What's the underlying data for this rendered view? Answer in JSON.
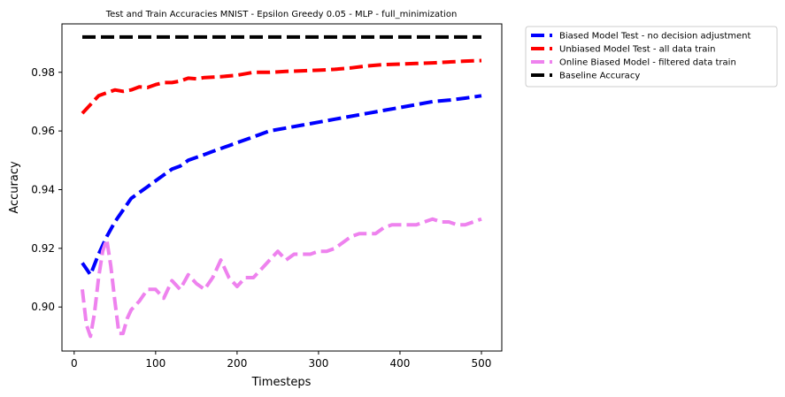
{
  "chart_data": {
    "type": "line",
    "title": "Test and Train Accuracies MNIST - Epsilon Greedy 0.05 - MLP - full_minimization",
    "xlabel": "Timesteps",
    "ylabel": "Accuracy",
    "xlim": [
      -15,
      525
    ],
    "ylim": [
      0.885,
      0.9965
    ],
    "xticks": [
      0,
      100,
      200,
      300,
      400,
      500
    ],
    "xtick_labels": [
      "0",
      "100",
      "200",
      "300",
      "400",
      "500"
    ],
    "yticks": [
      0.9,
      0.92,
      0.94,
      0.96,
      0.98
    ],
    "ytick_labels": [
      "0.90",
      "0.92",
      "0.94",
      "0.96",
      "0.98"
    ],
    "grid": false,
    "legend_position": "outside-right-top",
    "series": [
      {
        "name": "Biased Model Test - no decision adjustment",
        "color": "#0000ff",
        "dash": "dashed",
        "x": [
          10,
          20,
          30,
          40,
          50,
          60,
          70,
          80,
          90,
          100,
          110,
          120,
          130,
          140,
          150,
          160,
          170,
          180,
          190,
          200,
          220,
          240,
          260,
          280,
          300,
          320,
          340,
          360,
          380,
          400,
          420,
          440,
          460,
          480,
          500
        ],
        "y": [
          0.915,
          0.911,
          0.918,
          0.924,
          0.929,
          0.933,
          0.937,
          0.939,
          0.941,
          0.943,
          0.945,
          0.947,
          0.948,
          0.95,
          0.951,
          0.952,
          0.953,
          0.954,
          0.955,
          0.956,
          0.958,
          0.96,
          0.961,
          0.962,
          0.963,
          0.964,
          0.965,
          0.966,
          0.967,
          0.968,
          0.969,
          0.97,
          0.9705,
          0.9712,
          0.972
        ]
      },
      {
        "name": "Unbiased Model Test - all data train",
        "color": "#ff0000",
        "dash": "dashed",
        "x": [
          10,
          20,
          30,
          40,
          50,
          60,
          70,
          80,
          90,
          100,
          110,
          120,
          130,
          140,
          150,
          160,
          180,
          200,
          220,
          240,
          260,
          280,
          300,
          320,
          340,
          360,
          380,
          400,
          420,
          440,
          460,
          480,
          500
        ],
        "y": [
          0.966,
          0.969,
          0.972,
          0.973,
          0.974,
          0.9735,
          0.974,
          0.975,
          0.9748,
          0.9758,
          0.9765,
          0.9765,
          0.977,
          0.978,
          0.9778,
          0.9782,
          0.9785,
          0.979,
          0.98,
          0.98,
          0.9803,
          0.9805,
          0.9807,
          0.981,
          0.9815,
          0.9822,
          0.9826,
          0.9828,
          0.983,
          0.9832,
          0.9835,
          0.9838,
          0.984
        ]
      },
      {
        "name": "Online Biased Model - filtered data train",
        "color": "#ee82ee",
        "dash": "dashed",
        "x": [
          10,
          15,
          20,
          25,
          30,
          35,
          40,
          45,
          50,
          55,
          60,
          65,
          70,
          80,
          90,
          100,
          110,
          120,
          130,
          140,
          150,
          160,
          170,
          180,
          190,
          200,
          210,
          220,
          230,
          240,
          250,
          260,
          270,
          280,
          290,
          300,
          310,
          320,
          330,
          340,
          350,
          360,
          370,
          380,
          390,
          400,
          410,
          420,
          430,
          440,
          450,
          460,
          470,
          480,
          490,
          500
        ],
        "y": [
          0.906,
          0.894,
          0.89,
          0.898,
          0.91,
          0.919,
          0.923,
          0.914,
          0.902,
          0.891,
          0.891,
          0.896,
          0.899,
          0.902,
          0.906,
          0.906,
          0.903,
          0.909,
          0.906,
          0.911,
          0.908,
          0.906,
          0.91,
          0.916,
          0.91,
          0.907,
          0.91,
          0.91,
          0.913,
          0.916,
          0.919,
          0.916,
          0.918,
          0.918,
          0.918,
          0.919,
          0.919,
          0.92,
          0.922,
          0.924,
          0.925,
          0.925,
          0.925,
          0.927,
          0.928,
          0.928,
          0.928,
          0.928,
          0.929,
          0.93,
          0.929,
          0.929,
          0.928,
          0.928,
          0.929,
          0.93
        ]
      },
      {
        "name": "Baseline Accuracy",
        "color": "#000000",
        "dash": "dashed",
        "x": [
          10,
          500
        ],
        "y": [
          0.992,
          0.992
        ]
      }
    ]
  }
}
